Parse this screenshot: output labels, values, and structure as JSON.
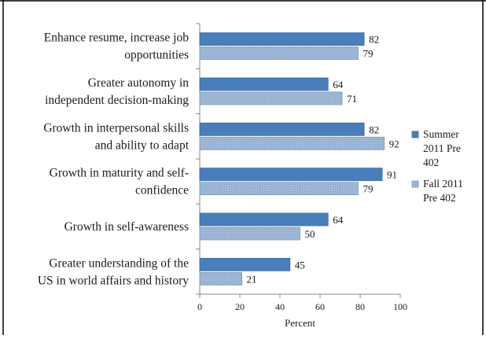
{
  "chart_data": {
    "type": "bar",
    "orientation": "horizontal",
    "title": "",
    "xlabel": "Percent",
    "ylabel": "",
    "xlim": [
      0,
      100
    ],
    "xticks": [
      0,
      20,
      40,
      60,
      80,
      100
    ],
    "grid": false,
    "legend_position": "right",
    "categories": [
      [
        "Enhance resume, increase job",
        "opportunities"
      ],
      [
        "Greater autonomy in",
        "independent decision-making"
      ],
      [
        "Growth in interpersonal skills",
        "and ability to adapt"
      ],
      [
        "Growth in maturity and self-",
        "confidence"
      ],
      [
        "Growth in self-awareness"
      ],
      [
        "Greater understanding of the",
        "US in world affairs and history"
      ]
    ],
    "series": [
      {
        "name": [
          "Summer",
          "2011 Pre",
          "402"
        ],
        "values": [
          82,
          64,
          82,
          91,
          64,
          45
        ],
        "color": "#4a7ebb",
        "pattern": "solid"
      },
      {
        "name": [
          "Fall 2011",
          "Pre 402"
        ],
        "values": [
          79,
          71,
          92,
          79,
          50,
          21
        ],
        "color": "#9cb5d4",
        "pattern": "dotted"
      }
    ]
  }
}
